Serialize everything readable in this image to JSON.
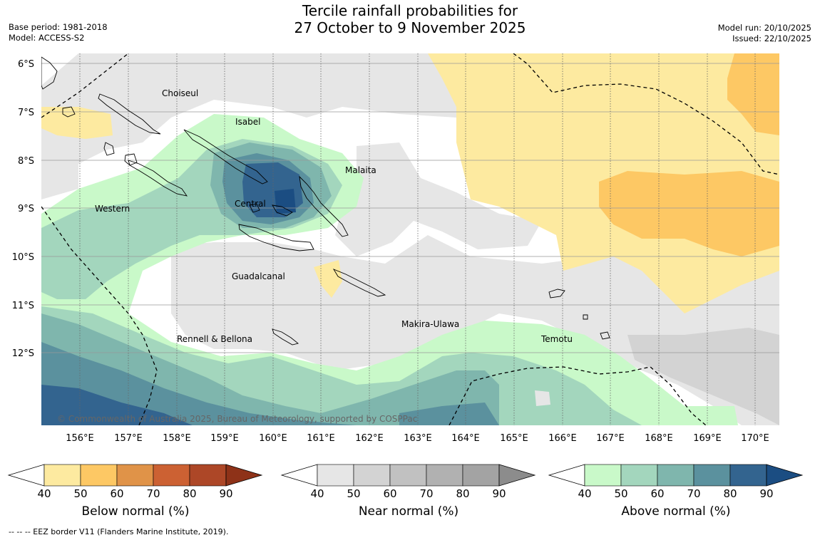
{
  "title_line1": "Tercile rainfall probabilities for",
  "title_line2": "27 October to 9 November 2025",
  "base_period": "Base period: 1981-2018",
  "model": "Model: ACCESS-S2",
  "model_run": "Model run: 20/10/2025",
  "issued": "Issued: 22/10/2025",
  "copyright": "© Commonwealth of Australia 2025, Bureau of Meteorology, supported by COSPPac",
  "lat_labels": [
    "6°S",
    "7°S",
    "8°S",
    "9°S",
    "10°S",
    "11°S",
    "12°S"
  ],
  "lon_labels": [
    "156°E",
    "157°E",
    "158°E",
    "159°E",
    "160°E",
    "161°E",
    "162°E",
    "163°E",
    "164°E",
    "165°E",
    "166°E",
    "167°E",
    "168°E",
    "169°E",
    "170°E"
  ],
  "provinces": {
    "choiseul": "Choiseul",
    "isabel": "Isabel",
    "malaita": "Malaita",
    "western": "Western",
    "central": "Central",
    "guadalcanal": "Guadalcanal",
    "makira": "Makira-Ulawa",
    "rennell": "Rennell & Bellona",
    "temotu": "Temotu"
  },
  "colorbars": {
    "below": {
      "title": "Below normal (%)",
      "ticks": [
        "40",
        "50",
        "60",
        "70",
        "80",
        "90"
      ],
      "colors": [
        "#fdeaa0",
        "#fdc864",
        "#e09348",
        "#cc6133",
        "#ad4727",
        "#8e3218"
      ]
    },
    "near": {
      "title": "Near normal (%)",
      "ticks": [
        "40",
        "50",
        "60",
        "70",
        "80",
        "90"
      ],
      "colors": [
        "#e6e6e6",
        "#d3d3d3",
        "#c1c1c1",
        "#b1b1b1",
        "#a3a3a3",
        "#8c8c8c"
      ]
    },
    "above": {
      "title": "Above normal (%)",
      "ticks": [
        "40",
        "50",
        "60",
        "70",
        "80",
        "90"
      ],
      "colors": [
        "#c9f9c9",
        "#a3d6bd",
        "#7fb6ad",
        "#5b919e",
        "#33648f",
        "#1b4d82"
      ]
    }
  },
  "footnote": "--  --  -- EEZ border V11 (Flanders Marine Institute, 2019)."
}
